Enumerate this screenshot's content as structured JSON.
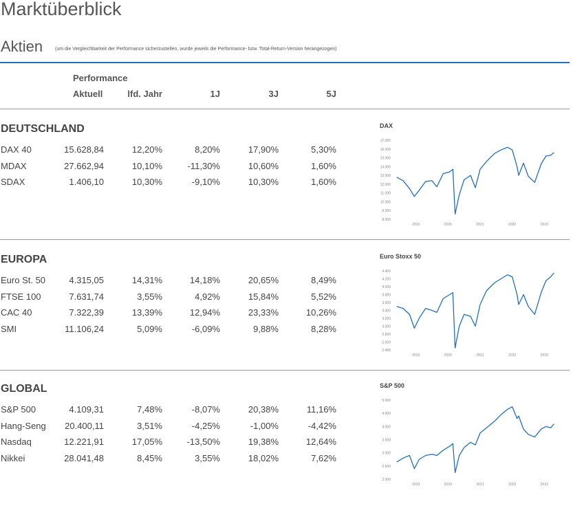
{
  "header": {
    "title": "Marktüberblick",
    "subtitle": "Aktien",
    "note": "(um die Vergleichbarkeit der Performance sicherzustellen, wurde jeweils die Performance- bzw. Total-Return-Version herangezogen)"
  },
  "table": {
    "group_label": "Performance",
    "columns": [
      "Aktuell",
      "lfd. Jahr",
      "1J",
      "3J",
      "5J"
    ],
    "sections": [
      {
        "name": "DEUTSCHLAND",
        "rows": [
          [
            "DAX 40",
            "15.628,84",
            "12,20%",
            "8,20%",
            "17,90%",
            "5,30%"
          ],
          [
            "MDAX",
            "27.662,94",
            "10,10%",
            "-11,30%",
            "10,60%",
            "1,60%"
          ],
          [
            "SDAX",
            "1.406,10",
            "10,30%",
            "-9,10%",
            "10,30%",
            "1,60%"
          ]
        ],
        "chart": {
          "type": "line",
          "title": "DAX",
          "color": "#1f6fbf",
          "x": [
            2018.4,
            2018.6,
            2018.8,
            2018.95,
            2019.1,
            2019.3,
            2019.5,
            2019.65,
            2019.85,
            2020.05,
            2020.15,
            2020.22,
            2020.35,
            2020.5,
            2020.7,
            2020.85,
            2021.0,
            2021.2,
            2021.45,
            2021.65,
            2021.85,
            2022.0,
            2022.15,
            2022.2,
            2022.35,
            2022.5,
            2022.7,
            2022.9,
            2023.05,
            2023.2,
            2023.3
          ],
          "values": [
            12800,
            12400,
            11500,
            10600,
            11300,
            12300,
            12400,
            11700,
            13200,
            13400,
            13700,
            8600,
            10800,
            12500,
            13000,
            11600,
            13700,
            14600,
            15500,
            15900,
            16200,
            15900,
            14000,
            13000,
            14400,
            12900,
            12200,
            14300,
            15200,
            15300,
            15600
          ],
          "xlim": [
            2018.3,
            2023.4
          ],
          "xticks": [
            2019,
            2020,
            2021,
            2022,
            2023
          ],
          "ylim": [
            8000,
            17000
          ],
          "yticks": [
            {
              "value": 8000,
              "label": "8.000"
            },
            {
              "value": 9000,
              "label": "9.000"
            },
            {
              "value": 10000,
              "label": "10.000"
            },
            {
              "value": 11000,
              "label": "11.000"
            },
            {
              "value": 12000,
              "label": "12.000"
            },
            {
              "value": 13000,
              "label": "13.000"
            },
            {
              "value": 14000,
              "label": "14.000"
            },
            {
              "value": 15000,
              "label": "15.000"
            },
            {
              "value": 16000,
              "label": "16.000"
            },
            {
              "value": 17000,
              "label": "17.000"
            }
          ]
        }
      },
      {
        "name": "EUROPA",
        "rows": [
          [
            "Euro St. 50",
            "4.315,05",
            "14,31%",
            "14,18%",
            "20,65%",
            "8,49%"
          ],
          [
            "FTSE 100",
            "7.631,74",
            "3,55%",
            "4,92%",
            "15,84%",
            "5,52%"
          ],
          [
            "CAC 40",
            "7.322,39",
            "13,39%",
            "12,94%",
            "23,33%",
            "10,26%"
          ],
          [
            "SMI",
            "11.106,24",
            "5,09%",
            "-6,09%",
            "9,88%",
            "8,28%"
          ]
        ],
        "chart": {
          "type": "line",
          "title": "Euro Stoxx 50",
          "color": "#1f6fbf",
          "x": [
            2018.4,
            2018.6,
            2018.8,
            2018.95,
            2019.1,
            2019.3,
            2019.5,
            2019.65,
            2019.85,
            2020.05,
            2020.15,
            2020.22,
            2020.35,
            2020.5,
            2020.7,
            2020.85,
            2021.0,
            2021.2,
            2021.45,
            2021.65,
            2021.85,
            2022.0,
            2022.15,
            2022.2,
            2022.35,
            2022.5,
            2022.7,
            2022.9,
            2023.05,
            2023.2,
            2023.3
          ],
          "values": [
            3500,
            3450,
            3300,
            2950,
            3200,
            3450,
            3400,
            3350,
            3700,
            3800,
            3850,
            2450,
            3000,
            3300,
            3250,
            3000,
            3550,
            3900,
            4100,
            4200,
            4300,
            4250,
            3800,
            3550,
            3800,
            3500,
            3300,
            3850,
            4150,
            4250,
            4350
          ],
          "xlim": [
            2018.3,
            2023.4
          ],
          "xticks": [
            2019,
            2020,
            2021,
            2022,
            2023
          ],
          "ylim": [
            2400,
            4400
          ],
          "yticks": [
            {
              "value": 2400,
              "label": "2.400"
            },
            {
              "value": 2600,
              "label": "2.600"
            },
            {
              "value": 2800,
              "label": "2.800"
            },
            {
              "value": 3000,
              "label": "3.000"
            },
            {
              "value": 3200,
              "label": "3.200"
            },
            {
              "value": 3400,
              "label": "3.400"
            },
            {
              "value": 3600,
              "label": "3.600"
            },
            {
              "value": 3800,
              "label": "3.800"
            },
            {
              "value": 4000,
              "label": "4.000"
            },
            {
              "value": 4200,
              "label": "4.200"
            },
            {
              "value": 4400,
              "label": "4.400"
            }
          ]
        }
      },
      {
        "name": "GLOBAL",
        "rows": [
          [
            "S&P 500",
            "4.109,31",
            "7,48%",
            "-8,07%",
            "20,38%",
            "11,16%"
          ],
          [
            "Hang-Seng",
            "20.400,11",
            "3,51%",
            "-4,25%",
            "-1,00%",
            "-4,42%"
          ],
          [
            "Nasdaq",
            "12.221,91",
            "17,05%",
            "-13,50%",
            "19,38%",
            "12,64%"
          ],
          [
            "Nikkei",
            "28.041,48",
            "8,45%",
            "3,55%",
            "18,02%",
            "7,62%"
          ]
        ],
        "chart": {
          "type": "line",
          "title": "S&P 500",
          "color": "#1f6fbf",
          "x": [
            2018.4,
            2018.6,
            2018.8,
            2018.95,
            2019.1,
            2019.3,
            2019.5,
            2019.65,
            2019.85,
            2020.05,
            2020.15,
            2020.22,
            2020.35,
            2020.5,
            2020.7,
            2020.85,
            2021.0,
            2021.2,
            2021.45,
            2021.65,
            2021.85,
            2022.0,
            2022.15,
            2022.2,
            2022.35,
            2022.5,
            2022.7,
            2022.9,
            2023.05,
            2023.2,
            2023.3
          ],
          "values": [
            2650,
            2800,
            2900,
            2400,
            2750,
            2900,
            2950,
            2900,
            3100,
            3250,
            3350,
            2250,
            2900,
            3200,
            3400,
            3300,
            3750,
            3950,
            4200,
            4450,
            4650,
            4750,
            4300,
            4400,
            3900,
            3700,
            3600,
            3900,
            4000,
            3950,
            4100
          ],
          "xlim": [
            2018.3,
            2023.4
          ],
          "xticks": [
            2019,
            2020,
            2021,
            2022,
            2023
          ],
          "ylim": [
            2000,
            5000
          ],
          "yticks": [
            {
              "value": 2000,
              "label": "2.000"
            },
            {
              "value": 2500,
              "label": "2.500"
            },
            {
              "value": 3000,
              "label": "3.000"
            },
            {
              "value": 3500,
              "label": "3.500"
            },
            {
              "value": 4000,
              "label": "4.000"
            },
            {
              "value": 4500,
              "label": "4.500"
            },
            {
              "value": 5000,
              "label": "5.000"
            }
          ]
        }
      }
    ]
  }
}
